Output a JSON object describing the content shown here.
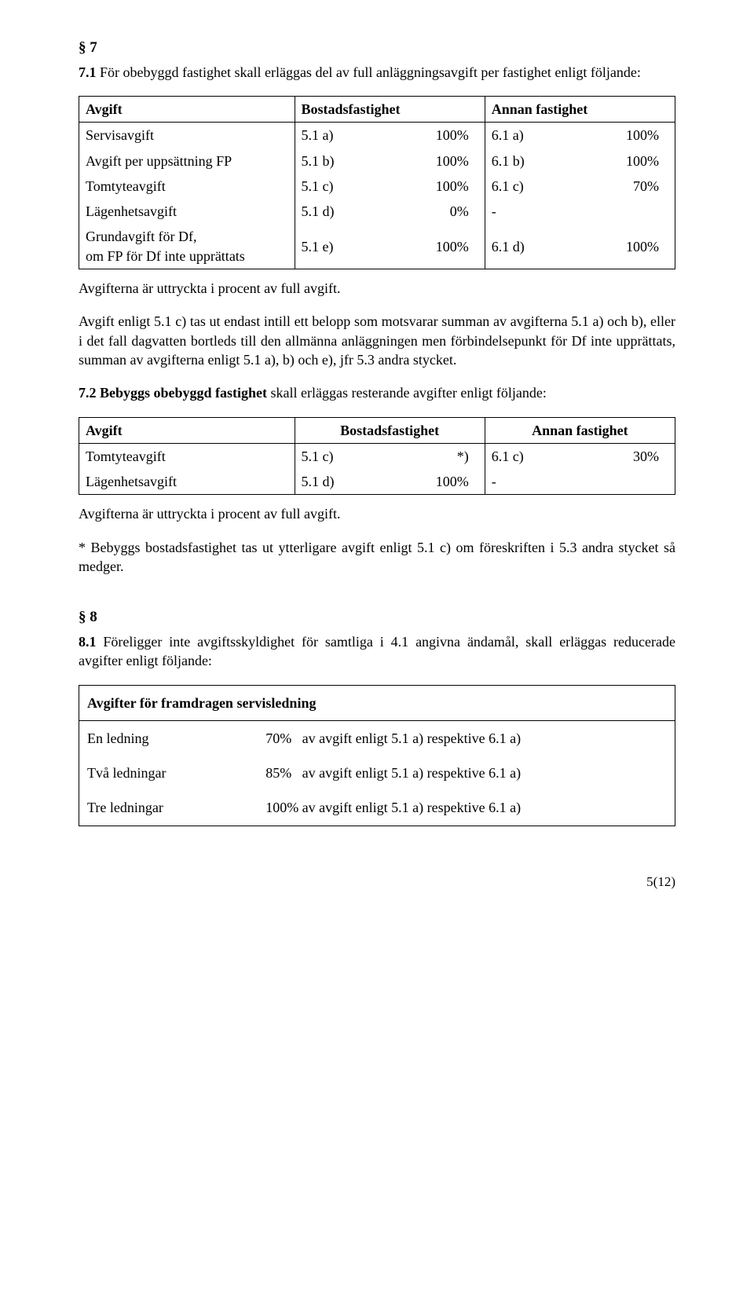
{
  "s7": {
    "heading": "§ 7",
    "p1_lead": "7.1",
    "p1_rest": " För obebyggd fastighet skall erläggas del av full anläggningsavgift per fastighet enligt följande:",
    "table1": {
      "h_avgift": "Avgift",
      "h_bostad": "Bostadsfastighet",
      "h_annan": "Annan fastighet",
      "rows": [
        {
          "label": "Servisavgift",
          "b_ref": "5.1 a)",
          "b_pct": "100%",
          "a_ref": "6.1 a)",
          "a_pct": "100%"
        },
        {
          "label": "Avgift per uppsättning FP",
          "b_ref": "5.1 b)",
          "b_pct": "100%",
          "a_ref": "6.1 b)",
          "a_pct": "100%"
        },
        {
          "label": "Tomtyteavgift",
          "b_ref": "5.1 c)",
          "b_pct": "100%",
          "a_ref": "6.1 c)",
          "a_pct": "70%"
        },
        {
          "label": "Lägenhetsavgift",
          "b_ref": "5.1 d)",
          "b_pct": "0%",
          "a_ref": "-",
          "a_pct": ""
        },
        {
          "label": "Grundavgift för Df,\nom FP för Df inte upprättats",
          "b_ref": "5.1 e)",
          "b_pct": "100%",
          "a_ref": "6.1 d)",
          "a_pct": "100%"
        }
      ]
    },
    "p2": "Avgifterna är uttryckta i procent av full avgift.",
    "p3": "Avgift enligt 5.1 c) tas ut endast intill ett belopp som motsvarar summan av avgifterna 5.1 a) och b), eller i det fall dagvatten bortleds till den allmänna anläggningen men förbindelsepunkt för Df inte upprättats, summan av avgifterna enligt 5.1 a), b) och e), jfr 5.3 andra stycket.",
    "p4_lead": "7.2 Bebyggs obebyggd fastighet",
    "p4_rest": " skall erläggas resterande avgifter enligt följande:",
    "table2": {
      "h_avgift": "Avgift",
      "h_bostad": "Bostadsfastighet",
      "h_annan": "Annan fastighet",
      "rows": [
        {
          "label": "Tomtyteavgift",
          "b_ref": "5.1 c)",
          "b_pct": "*)",
          "a_ref": "6.1 c)",
          "a_pct": "30%"
        },
        {
          "label": "Lägenhetsavgift",
          "b_ref": "5.1 d)",
          "b_pct": "100%",
          "a_ref": "-",
          "a_pct": ""
        }
      ]
    },
    "p5": "Avgifterna är uttryckta i procent av full avgift.",
    "p6": "* Bebyggs bostadsfastighet tas ut ytterligare avgift enligt 5.1 c) om föreskriften i 5.3 andra stycket så medger."
  },
  "s8": {
    "heading": "§ 8",
    "p1_lead": "8.1",
    "p1_rest": " Föreligger inte avgiftsskyldighet för samtliga i 4.1 angivna ändamål, skall erläggas reducerade avgifter enligt följande:",
    "table3": {
      "title": "Avgifter för framdragen servisledning",
      "rows": [
        {
          "label": "En ledning",
          "value": "70%   av avgift enligt 5.1 a) respektive 6.1 a)"
        },
        {
          "label": "Två ledningar",
          "value": "85%   av avgift enligt 5.1 a) respektive 6.1 a)"
        },
        {
          "label": "Tre ledningar",
          "value": "100% av avgift enligt 5.1 a) respektive 6.1 a)"
        }
      ]
    }
  },
  "page_number": "5(12)"
}
